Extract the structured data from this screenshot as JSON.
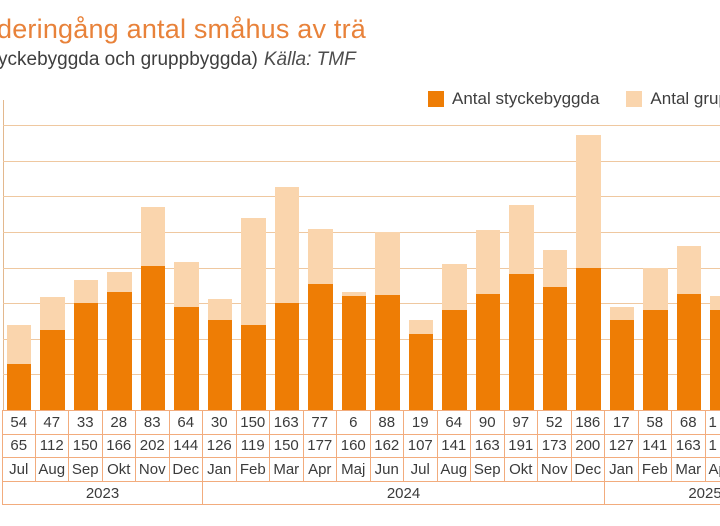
{
  "header": {
    "title": "deringång antal småhus av trä",
    "subtitle": "yckebyggda och gruppbyggda)",
    "source": "Källa: TMF"
  },
  "legend": {
    "items": [
      {
        "label": "Antal styckebyggda",
        "color": "#EE7D05"
      },
      {
        "label": "Antal gruppbyggda",
        "color": "#FAD5AD"
      }
    ]
  },
  "colors": {
    "title": "#E8823A",
    "bar_styckebyggda": "#EE7D05",
    "bar_gruppbyggda": "#FAD5AD",
    "gridline": "#EFC8A0",
    "axis_line": "#E3B88E",
    "table_border": "#F2AC7D",
    "text": "#3B3B3B"
  },
  "chart_data": {
    "type": "bar",
    "stacked": true,
    "title": "deringång antal småhus av trä (cropped)",
    "x": [
      "Jul",
      "Aug",
      "Sep",
      "Okt",
      "Nov",
      "Dec",
      "Jan",
      "Feb",
      "Mar",
      "Apr",
      "Maj",
      "Jun",
      "Jul",
      "Aug",
      "Sep",
      "Okt",
      "Nov",
      "Dec",
      "Jan",
      "Feb",
      "Mar"
    ],
    "series": [
      {
        "name": "Antal styckebyggda",
        "color": "#EE7D05",
        "values": [
          65,
          112,
          150,
          166,
          202,
          144,
          126,
          119,
          150,
          177,
          160,
          162,
          107,
          141,
          163,
          191,
          173,
          200,
          127,
          141,
          163
        ]
      },
      {
        "name": "Antal gruppbyggda",
        "color": "#FAD5AD",
        "values": [
          54,
          47,
          33,
          28,
          83,
          64,
          30,
          150,
          163,
          77,
          6,
          88,
          19,
          64,
          90,
          97,
          52,
          186,
          17,
          58,
          68
        ]
      }
    ],
    "years": [
      {
        "label": "2023",
        "span": 6
      },
      {
        "label": "2024",
        "span": 12
      },
      {
        "label": "2025",
        "span": 6
      }
    ],
    "partial_last_column": {
      "month": "Apr",
      "gruppbyggda_cell_text": "1",
      "styckebyggda_cell_text": "1",
      "styckebyggda_bar_estimate": 140,
      "gruppbyggda_bar_estimate": 20
    },
    "ylim": [
      0,
      435
    ],
    "gridline_step": 50,
    "grid": true,
    "legend_position": "top-right",
    "y_axis_labels_visible": false
  }
}
